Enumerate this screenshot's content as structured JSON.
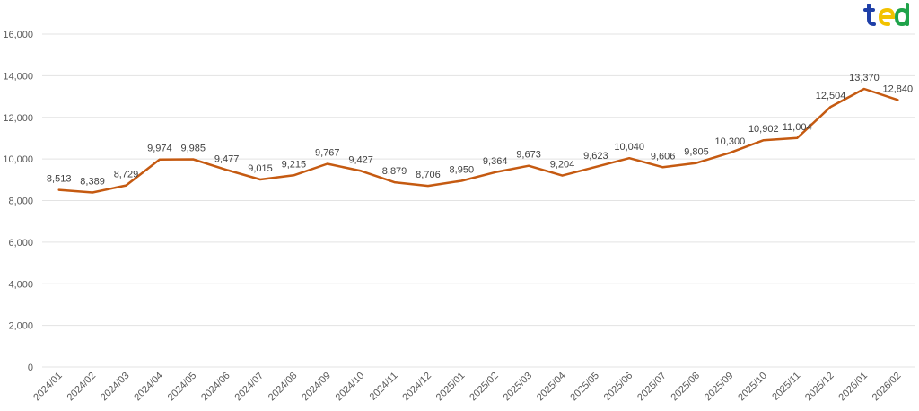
{
  "chart_data": {
    "type": "line",
    "title": "",
    "xlabel": "",
    "ylabel": "",
    "ylim": [
      0,
      16000
    ],
    "yticks": [
      0,
      2000,
      4000,
      6000,
      8000,
      10000,
      12000,
      14000,
      16000
    ],
    "ytick_labels": [
      "0",
      "2,000",
      "4,000",
      "6,000",
      "8,000",
      "10,000",
      "12,000",
      "14,000",
      "16,000"
    ],
    "grid": true,
    "legend": "none",
    "categories": [
      "2024/01",
      "2024/02",
      "2024/03",
      "2024/04",
      "2024/05",
      "2024/06",
      "2024/07",
      "2024/08",
      "2024/09",
      "2024/10",
      "2024/11",
      "2024/12",
      "2025/01",
      "2025/02",
      "2025/03",
      "2025/04",
      "2025/05",
      "2025/06",
      "2025/07",
      "2025/08",
      "2025/09",
      "2025/10",
      "2025/11",
      "2025/12",
      "2026/01",
      "2026/02"
    ],
    "series": [
      {
        "name": "",
        "color": "#C55A11",
        "values": [
          8513,
          8389,
          8729,
          9974,
          9985,
          9477,
          9015,
          9215,
          9767,
          9427,
          8879,
          8706,
          8950,
          9364,
          9673,
          9204,
          9623,
          10040,
          9606,
          9805,
          10300,
          10902,
          11004,
          12504,
          13370,
          12840
        ],
        "labels": [
          "8,513",
          "8,389",
          "8,729",
          "9,974",
          "9,985",
          "9,477",
          "9,015",
          "9,215",
          "9,767",
          "9,427",
          "8,879",
          "8,706",
          "8,950",
          "9,364",
          "9,673",
          "9,204",
          "9,623",
          "10,040",
          "9,606",
          "9,805",
          "10,300",
          "10,902",
          "11,004",
          "12,504",
          "13,370",
          "12,840"
        ]
      }
    ]
  },
  "logo": {
    "name": "brand-logo",
    "colors": {
      "blue": "#1E3FA8",
      "yellow": "#F2C200",
      "green": "#1FA34A"
    }
  }
}
